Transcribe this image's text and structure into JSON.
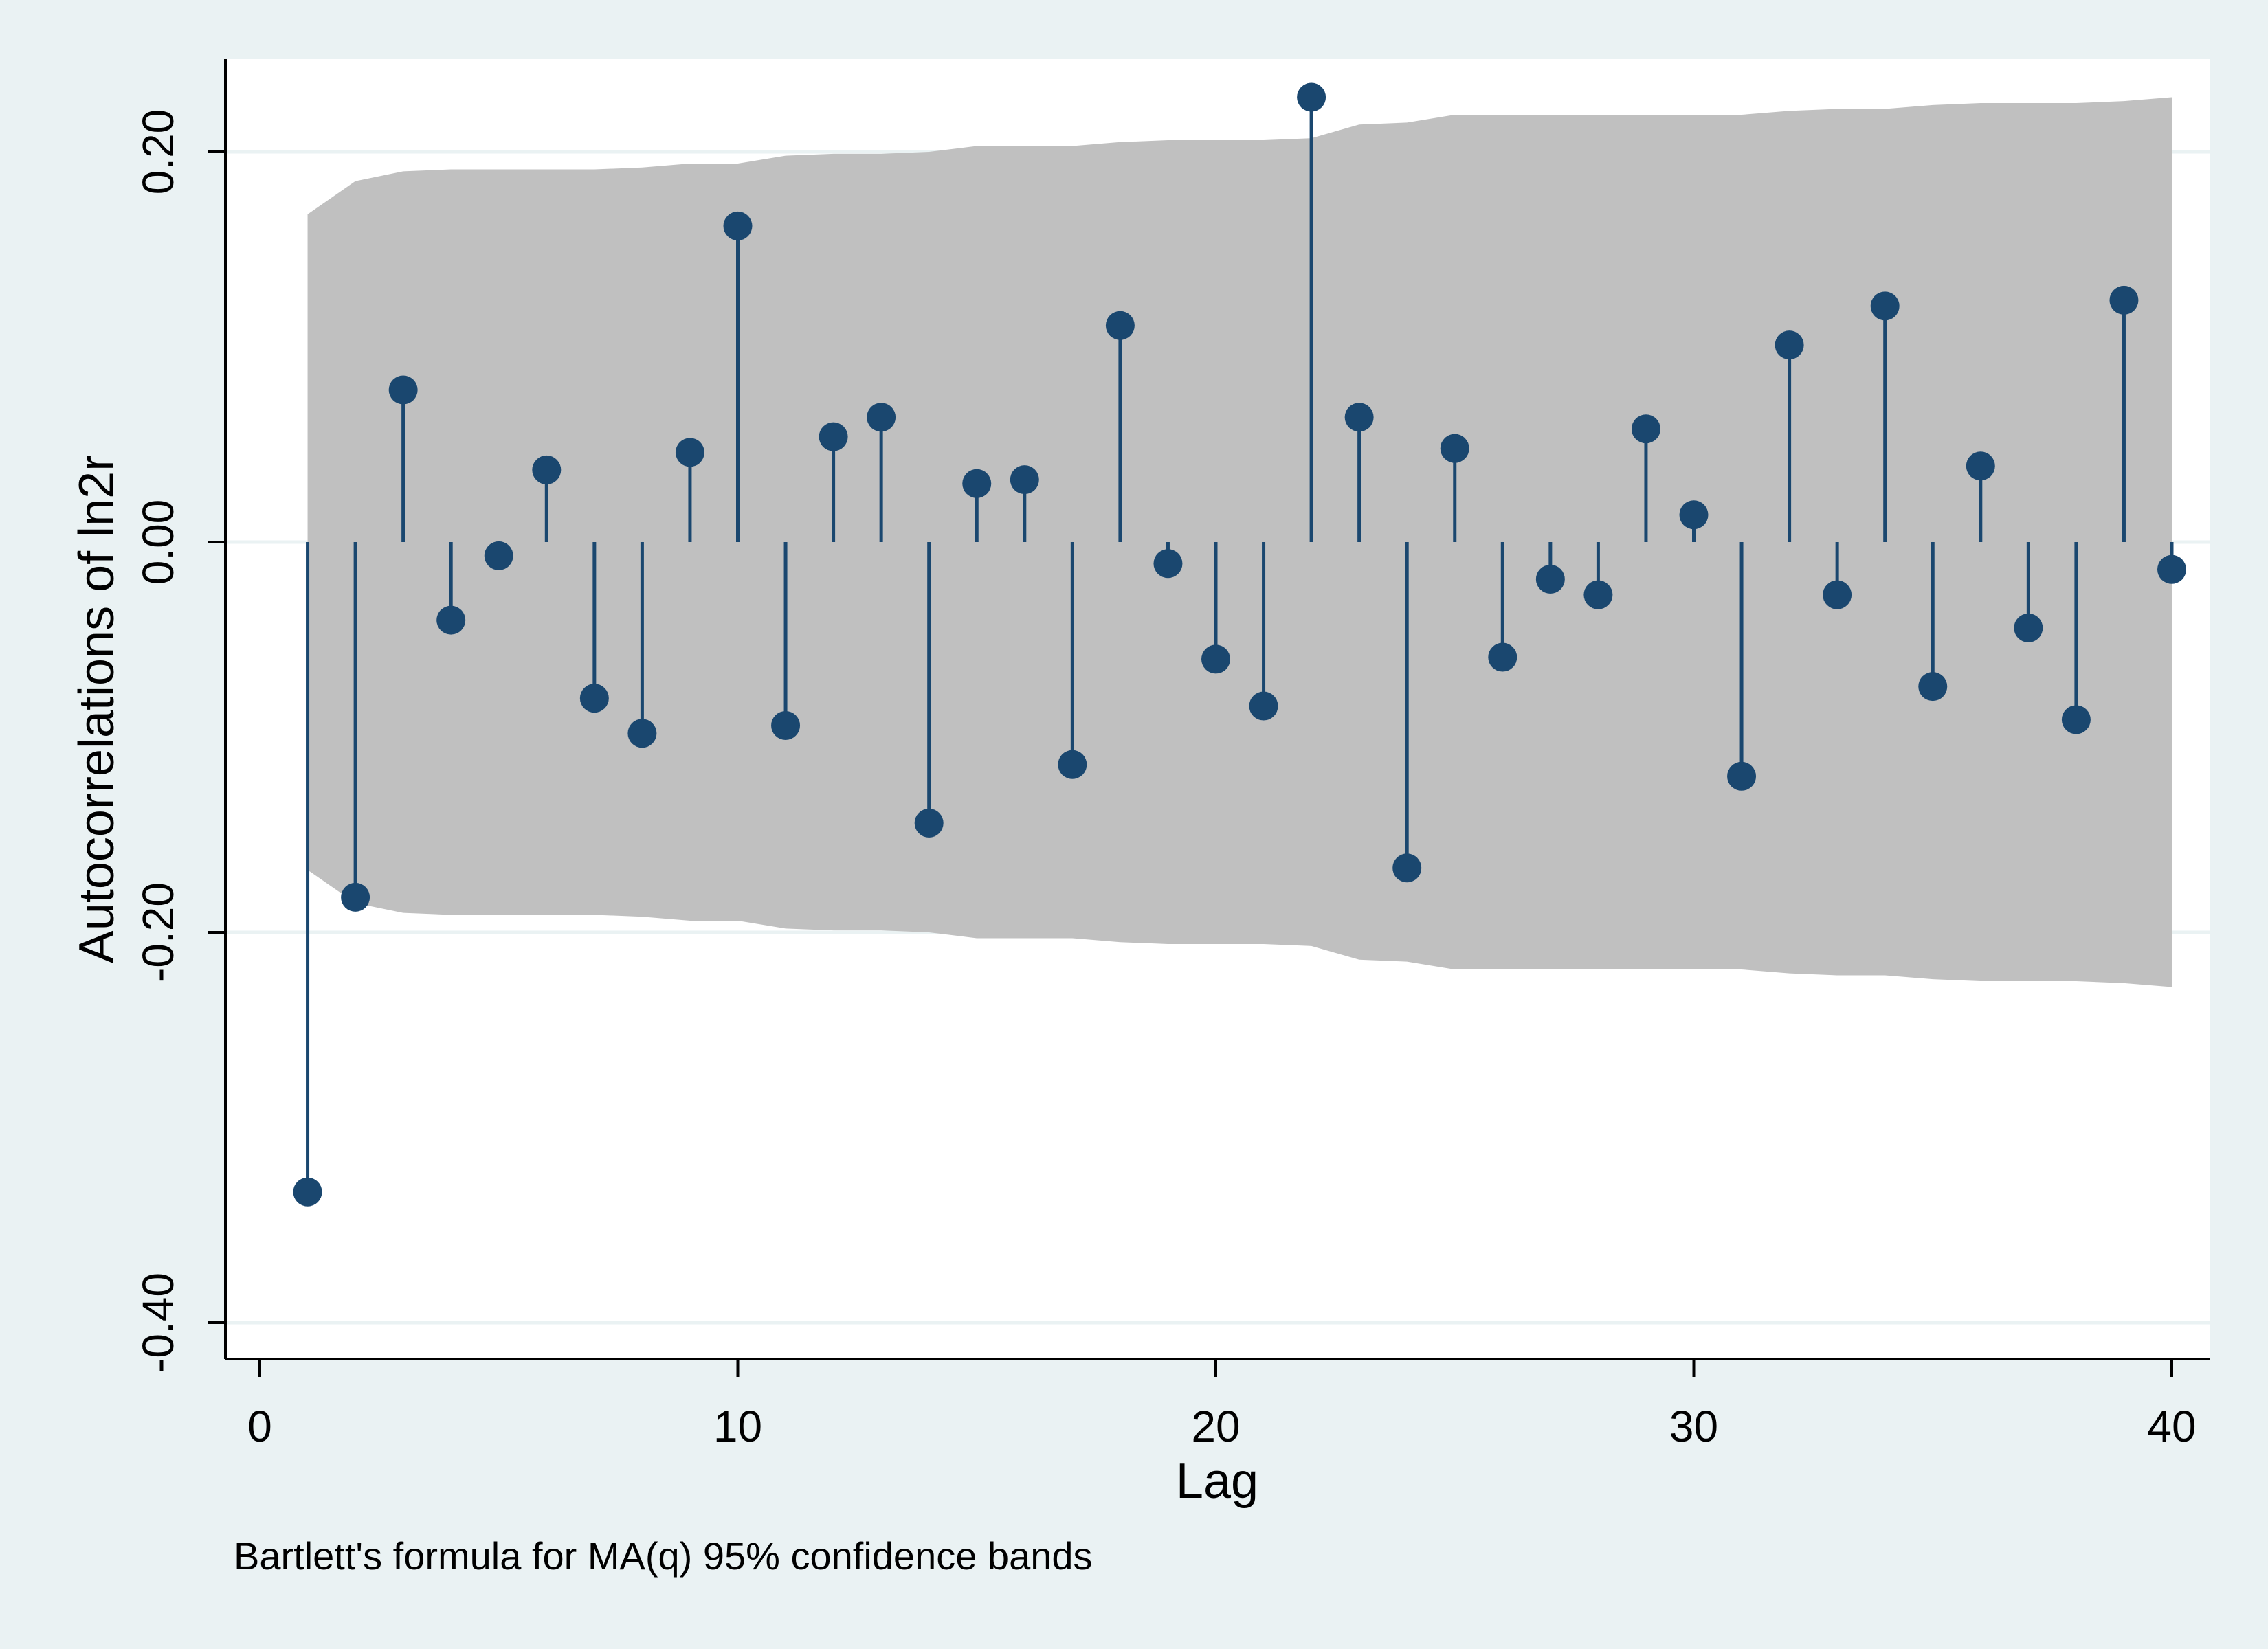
{
  "chart_data": {
    "type": "stem",
    "xlabel": "Lag",
    "ylabel": "Autocorrelations of ln2r",
    "note": "Bartlett's formula for MA(q) 95% confidence bands",
    "xlim": [
      -1,
      40.8
    ],
    "ylim": [
      -0.42,
      0.248
    ],
    "xticks": [
      0,
      10,
      20,
      30,
      40
    ],
    "xtick_labels": [
      "0",
      "10",
      "20",
      "30",
      "40"
    ],
    "yticks": [
      -0.4,
      -0.2,
      0,
      0.2
    ],
    "ytick_labels": [
      "-0.40",
      "-0.20",
      "0.00",
      "0.20"
    ],
    "grid": true,
    "colors": {
      "plot_bg": "#ffffff",
      "outer_bg": "#eaf2f3",
      "band": "#c0c0c0",
      "stem": "#1a476f",
      "grid": "#eaf2f3"
    },
    "lags": [
      1,
      2,
      3,
      4,
      5,
      6,
      7,
      8,
      9,
      10,
      11,
      12,
      13,
      14,
      15,
      16,
      17,
      18,
      19,
      20,
      21,
      22,
      23,
      24,
      25,
      26,
      27,
      28,
      29,
      30,
      31,
      32,
      33,
      34,
      35,
      36,
      37,
      38,
      39,
      40
    ],
    "acf": [
      -0.333,
      -0.182,
      0.078,
      -0.04,
      -0.007,
      0.037,
      -0.08,
      -0.098,
      0.046,
      0.162,
      -0.094,
      0.054,
      0.064,
      -0.144,
      0.03,
      0.032,
      -0.114,
      0.111,
      -0.011,
      -0.06,
      -0.084,
      0.228,
      0.064,
      -0.167,
      0.048,
      -0.059,
      -0.019,
      -0.027,
      0.058,
      0.014,
      -0.12,
      0.101,
      -0.027,
      0.121,
      -0.074,
      0.039,
      -0.044,
      -0.091,
      0.124,
      -0.014
    ],
    "band": [
      0.168,
      0.185,
      0.19,
      0.191,
      0.191,
      0.191,
      0.191,
      0.192,
      0.194,
      0.194,
      0.198,
      0.199,
      0.199,
      0.2,
      0.203,
      0.203,
      0.203,
      0.205,
      0.206,
      0.206,
      0.206,
      0.207,
      0.214,
      0.215,
      0.219,
      0.219,
      0.219,
      0.219,
      0.219,
      0.219,
      0.219,
      0.221,
      0.222,
      0.222,
      0.224,
      0.225,
      0.225,
      0.225,
      0.226,
      0.228
    ]
  }
}
